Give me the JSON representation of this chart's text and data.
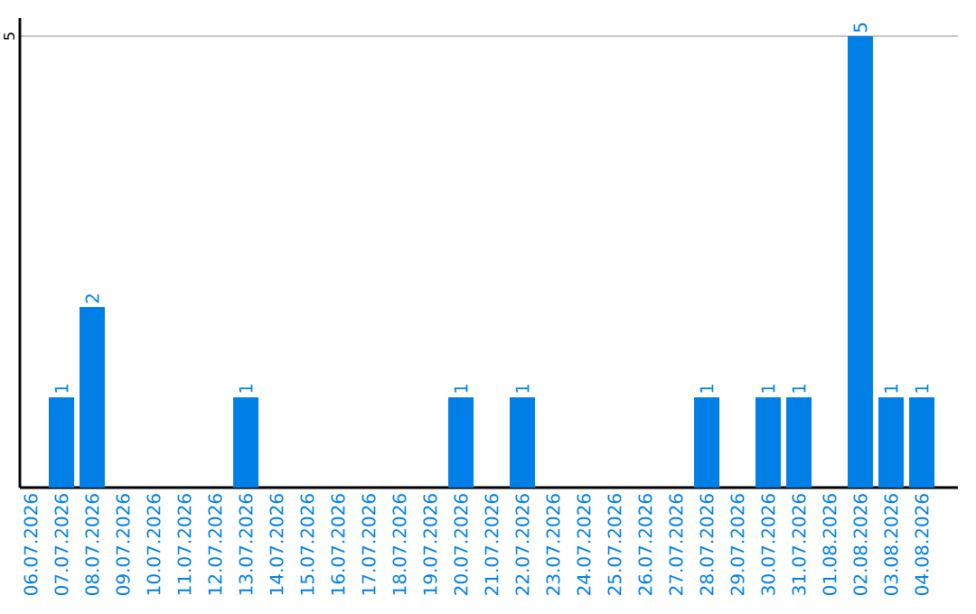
{
  "chart_data": {
    "type": "bar",
    "categories": [
      "06.07.2026",
      "07.07.2026",
      "08.07.2026",
      "09.07.2026",
      "10.07.2026",
      "11.07.2026",
      "12.07.2026",
      "13.07.2026",
      "14.07.2026",
      "15.07.2026",
      "16.07.2026",
      "17.07.2026",
      "18.07.2026",
      "19.07.2026",
      "20.07.2026",
      "21.07.2026",
      "22.07.2026",
      "23.07.2026",
      "24.07.2026",
      "25.07.2026",
      "26.07.2026",
      "27.07.2026",
      "28.07.2026",
      "29.07.2026",
      "30.07.2026",
      "31.07.2026",
      "01.08.2026",
      "02.08.2026",
      "03.08.2026",
      "04.08.2026"
    ],
    "values": [
      0,
      1,
      2,
      0,
      0,
      0,
      0,
      1,
      0,
      0,
      0,
      0,
      0,
      0,
      1,
      0,
      1,
      0,
      0,
      0,
      0,
      0,
      1,
      0,
      1,
      1,
      0,
      5,
      1,
      1
    ],
    "value_labels": [
      null,
      "1",
      "2",
      null,
      null,
      null,
      null,
      "1",
      null,
      null,
      null,
      null,
      null,
      null,
      "1",
      null,
      "1",
      null,
      null,
      null,
      null,
      null,
      "1",
      null,
      "1",
      "1",
      null,
      "5",
      "1",
      "1"
    ],
    "color": "#007fe6",
    "ylim": [
      0,
      5.2
    ],
    "yticks": [
      5
    ],
    "grid": "y"
  }
}
